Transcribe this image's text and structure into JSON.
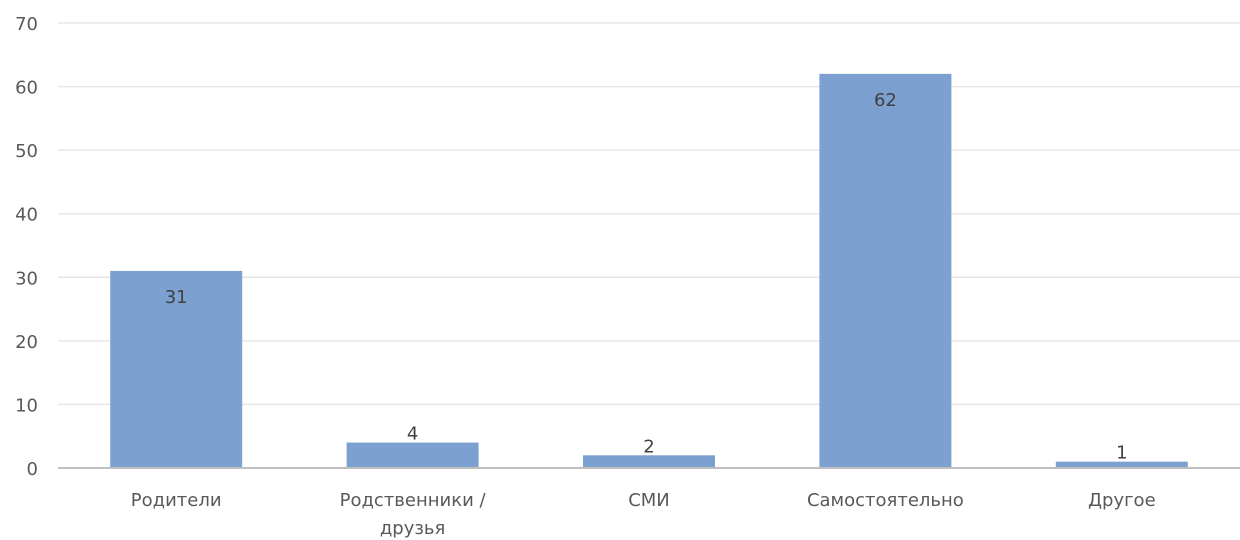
{
  "chart_data": {
    "type": "bar",
    "title": "",
    "xlabel": "",
    "ylabel": "",
    "categories": [
      [
        "Родители"
      ],
      [
        "Родственники  /",
        "друзья"
      ],
      [
        "СМИ"
      ],
      [
        "Самостоятельно"
      ],
      [
        "Другое"
      ]
    ],
    "values": [
      31,
      4,
      2,
      62,
      1
    ],
    "ylim": [
      0,
      70
    ],
    "yticks": [
      0,
      10,
      20,
      30,
      40,
      50,
      60,
      70
    ],
    "grid": true,
    "legend": "none",
    "bar_color": "#7ca1d0",
    "grid_color": "#e6e6e6",
    "axis_color": "#bfbfbf"
  }
}
